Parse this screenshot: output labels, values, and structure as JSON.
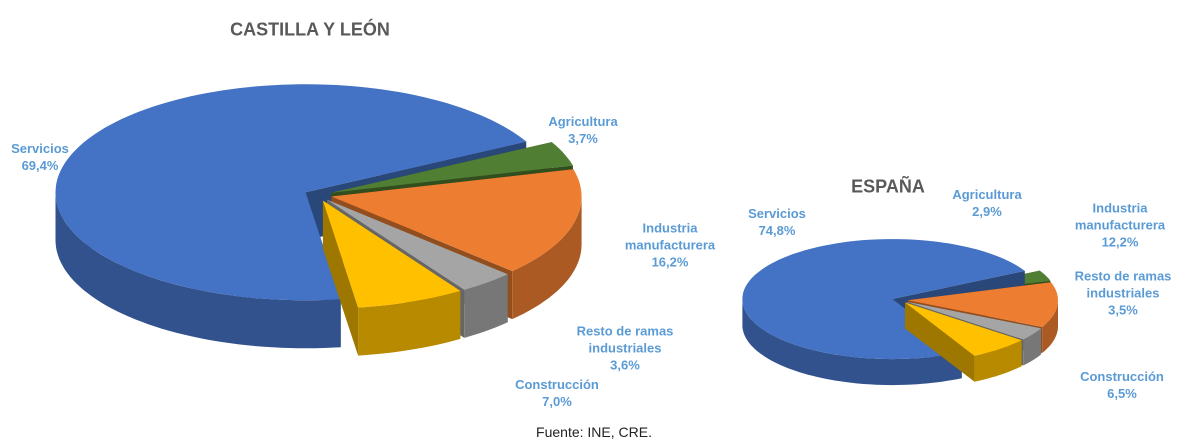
{
  "chart_data": [
    {
      "type": "pie",
      "title": "CASTILLA Y LEÓN",
      "categories": [
        "Agricultura",
        "Industria manufacturera",
        "Resto de ramas industriales",
        "Construcción",
        "Servicios"
      ],
      "values": [
        3.7,
        16.2,
        3.6,
        7.0,
        69.4
      ],
      "value_labels": [
        "3,7%",
        "16,2%",
        "3,6%",
        "7,0%",
        "69,4%"
      ],
      "colors": [
        "#507e32",
        "#ed7d31",
        "#a5a5a5",
        "#ffc000",
        "#4472c4"
      ]
    },
    {
      "type": "pie",
      "title": "ESPAÑA",
      "categories": [
        "Agricultura",
        "Industria manufacturera",
        "Resto de ramas industriales",
        "Construcción",
        "Servicios"
      ],
      "values": [
        2.9,
        12.2,
        3.5,
        6.5,
        74.8
      ],
      "value_labels": [
        "2,9%",
        "12,2%",
        "3,5%",
        "6,5%",
        "74,8%"
      ],
      "colors": [
        "#507e32",
        "#ed7d31",
        "#a5a5a5",
        "#ffc000",
        "#4472c4"
      ]
    }
  ],
  "source": "Fuente: INE, CRE."
}
